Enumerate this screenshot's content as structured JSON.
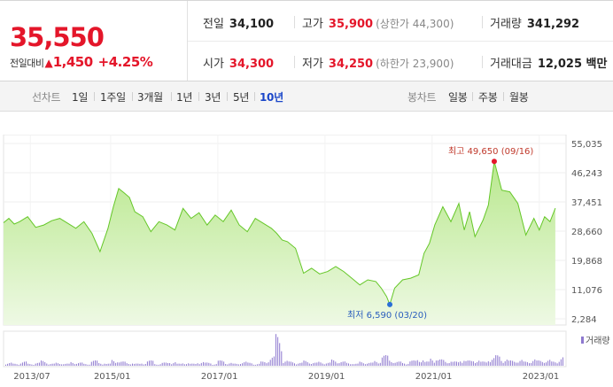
{
  "quote": {
    "price": "35,550",
    "change_label": "전일대비",
    "change_arrow": "▲",
    "change": "1,450",
    "change_pct": "+4.25%",
    "prev_close": {
      "label": "전일",
      "value": "34,100"
    },
    "high": {
      "label": "고가",
      "value": "35,900",
      "sub": "(상한가 44,300)"
    },
    "volume": {
      "label": "거래량",
      "value": "341,292"
    },
    "open": {
      "label": "시가",
      "value": "34,300"
    },
    "low": {
      "label": "저가",
      "value": "34,250",
      "sub": "(하한가 23,900)"
    },
    "amount": {
      "label": "거래대금",
      "value": "12,025 백만"
    }
  },
  "tabs": {
    "line_label": "선차트",
    "line": [
      "1일",
      "1주일",
      "3개월",
      "1년",
      "3년",
      "5년",
      "10년"
    ],
    "active": "10년",
    "candle_label": "봉차트",
    "candle": [
      "일봉",
      "주봉",
      "월봉"
    ]
  },
  "colors": {
    "up": "#e4162a",
    "accent": "#1a46c9",
    "line": "#65c728",
    "fill": "#d9f3c3",
    "volume": "#8e79cf"
  },
  "chart_data": {
    "type": "area",
    "y_ticks": [
      "55,035",
      "46,243",
      "37,451",
      "28,660",
      "19,868",
      "11,076",
      "2,284"
    ],
    "ylim": [
      2284,
      55035
    ],
    "x_ticks": [
      "2013/07",
      "2015/01",
      "2017/01",
      "2019/01",
      "2021/01",
      "2023/01"
    ],
    "x_tick_pos": [
      2013.5,
      2015.0,
      2017.0,
      2019.0,
      2021.0,
      2023.0
    ],
    "xlim": [
      2013.0,
      2023.5
    ],
    "high_label": "최고 49,650 (09/16)",
    "high_point": [
      2022.16,
      49650
    ],
    "low_label": "최저 6,590 (03/20)",
    "low_point": [
      2020.21,
      6590
    ],
    "volume_label": "거래량",
    "series": [
      {
        "x": [
          2013.0,
          2013.1,
          2013.2,
          2013.3,
          2013.45,
          2013.6,
          2013.75,
          2013.9,
          2014.05,
          2014.2,
          2014.35,
          2014.5,
          2014.65,
          2014.8,
          2014.95,
          2015.05,
          2015.15,
          2015.25,
          2015.35,
          2015.45,
          2015.6,
          2015.75,
          2015.9,
          2016.05,
          2016.2,
          2016.35,
          2016.5,
          2016.65,
          2016.8,
          2016.95,
          2017.1,
          2017.25,
          2017.4,
          2017.55,
          2017.7,
          2017.85,
          2018.0,
          2018.1,
          2018.2,
          2018.3,
          2018.45,
          2018.6,
          2018.75,
          2018.9,
          2019.05,
          2019.2,
          2019.35,
          2019.5,
          2019.65,
          2019.8,
          2019.95,
          2020.05,
          2020.15,
          2020.21,
          2020.3,
          2020.45,
          2020.6,
          2020.75,
          2020.85,
          2020.95,
          2021.05,
          2021.2,
          2021.35,
          2021.5,
          2021.6,
          2021.7,
          2021.8,
          2021.95,
          2022.05,
          2022.16,
          2022.3,
          2022.45,
          2022.6,
          2022.75,
          2022.9,
          2023.0,
          2023.1,
          2023.2,
          2023.3
        ],
        "values": [
          31200,
          32500,
          30800,
          31500,
          33000,
          29800,
          30500,
          31800,
          32500,
          31000,
          29500,
          31500,
          28000,
          22500,
          29500,
          36000,
          41500,
          40200,
          38800,
          34500,
          33000,
          28500,
          31500,
          30500,
          29000,
          35500,
          32500,
          34200,
          30500,
          33500,
          31500,
          35000,
          30500,
          28500,
          32500,
          31000,
          29500,
          28000,
          26000,
          25500,
          23500,
          16000,
          17500,
          15800,
          16500,
          18000,
          16500,
          14500,
          12500,
          14000,
          13500,
          11500,
          9000,
          6590,
          11500,
          14000,
          14500,
          15500,
          22000,
          25000,
          30500,
          36000,
          31500,
          37000,
          29000,
          34500,
          27000,
          32000,
          36500,
          49650,
          41000,
          40500,
          37000,
          27500,
          32500,
          29000,
          33000,
          31500,
          35550
        ]
      }
    ],
    "volume": [
      3,
      2,
      4,
      2,
      3,
      5,
      2,
      3,
      2,
      4,
      3,
      2,
      5,
      3,
      2,
      6,
      4,
      3,
      2,
      3,
      5,
      2,
      3,
      4,
      2,
      3,
      2,
      4,
      3,
      2,
      5,
      3,
      2,
      4,
      3,
      2,
      4,
      9,
      30,
      5,
      4,
      3,
      5,
      3,
      4,
      3,
      6,
      4,
      3,
      2,
      4,
      3,
      5,
      10,
      6,
      4,
      3,
      5,
      7,
      4,
      8,
      6,
      5,
      4,
      7,
      5,
      6,
      4,
      8,
      10,
      7,
      5,
      6,
      4,
      7,
      5,
      6,
      4,
      9
    ]
  }
}
